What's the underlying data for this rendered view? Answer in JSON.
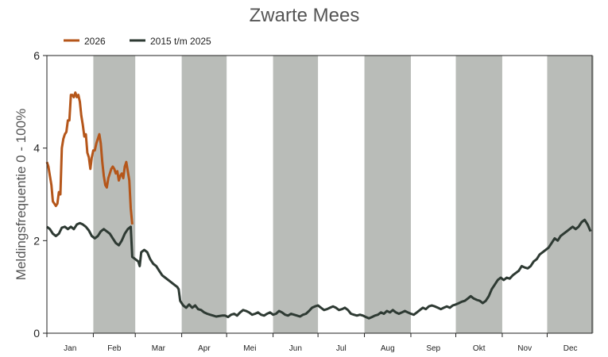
{
  "chart_data": {
    "type": "line",
    "title": "Zwarte Mees",
    "xlabel": "",
    "ylabel": "Meldingsfrequentie 0 - 100%",
    "ylim": [
      0,
      6
    ],
    "yticks": [
      "0",
      "2",
      "4",
      "6"
    ],
    "months": [
      "Jan",
      "Feb",
      "Mar",
      "Apr",
      "Mei",
      "Jun",
      "Jul",
      "Aug",
      "Sep",
      "Okt",
      "Nov",
      "Dec"
    ],
    "month_shading": "alternate months shaded grey (Feb, Apr, Jun, Aug, Okt, Dec)",
    "legend_position": "top-left",
    "x_unit": "day of year",
    "series": [
      {
        "name": "2026",
        "color": "#b5561a",
        "points": [
          [
            1,
            3.7
          ],
          [
            2,
            3.6
          ],
          [
            3,
            3.4
          ],
          [
            4,
            3.2
          ],
          [
            5,
            2.85
          ],
          [
            6,
            2.8
          ],
          [
            7,
            2.75
          ],
          [
            8,
            2.8
          ],
          [
            9,
            3.05
          ],
          [
            10,
            3.0
          ],
          [
            11,
            4.0
          ],
          [
            12,
            4.2
          ],
          [
            13,
            4.3
          ],
          [
            14,
            4.35
          ],
          [
            15,
            4.6
          ],
          [
            16,
            4.6
          ],
          [
            17,
            5.15
          ],
          [
            18,
            5.15
          ],
          [
            19,
            5.1
          ],
          [
            20,
            5.2
          ],
          [
            21,
            5.1
          ],
          [
            22,
            5.15
          ],
          [
            23,
            5.0
          ],
          [
            24,
            4.7
          ],
          [
            25,
            4.5
          ],
          [
            26,
            4.25
          ],
          [
            27,
            4.3
          ],
          [
            28,
            3.9
          ],
          [
            29,
            3.8
          ],
          [
            30,
            3.55
          ],
          [
            31,
            3.8
          ],
          [
            32,
            3.95
          ],
          [
            33,
            3.95
          ],
          [
            34,
            4.1
          ],
          [
            35,
            4.2
          ],
          [
            36,
            4.3
          ],
          [
            37,
            4.1
          ],
          [
            38,
            3.7
          ],
          [
            39,
            3.4
          ],
          [
            40,
            3.2
          ],
          [
            41,
            3.15
          ],
          [
            42,
            3.35
          ],
          [
            43,
            3.45
          ],
          [
            44,
            3.55
          ],
          [
            45,
            3.6
          ],
          [
            46,
            3.55
          ],
          [
            47,
            3.45
          ],
          [
            48,
            3.5
          ],
          [
            49,
            3.3
          ],
          [
            50,
            3.4
          ],
          [
            51,
            3.45
          ],
          [
            52,
            3.35
          ],
          [
            53,
            3.6
          ],
          [
            54,
            3.7
          ],
          [
            55,
            3.5
          ],
          [
            56,
            3.3
          ],
          [
            57,
            2.7
          ],
          [
            58,
            2.35
          ]
        ]
      },
      {
        "name": "2015 t/m 2025",
        "color": "#2e3a33",
        "points": [
          [
            1,
            2.3
          ],
          [
            3,
            2.25
          ],
          [
            5,
            2.15
          ],
          [
            7,
            2.1
          ],
          [
            9,
            2.15
          ],
          [
            11,
            2.28
          ],
          [
            13,
            2.3
          ],
          [
            15,
            2.25
          ],
          [
            17,
            2.3
          ],
          [
            19,
            2.25
          ],
          [
            21,
            2.35
          ],
          [
            23,
            2.38
          ],
          [
            25,
            2.35
          ],
          [
            27,
            2.3
          ],
          [
            29,
            2.22
          ],
          [
            31,
            2.1
          ],
          [
            33,
            2.05
          ],
          [
            35,
            2.1
          ],
          [
            37,
            2.2
          ],
          [
            39,
            2.25
          ],
          [
            41,
            2.2
          ],
          [
            43,
            2.15
          ],
          [
            45,
            2.05
          ],
          [
            47,
            1.95
          ],
          [
            49,
            1.9
          ],
          [
            51,
            2.0
          ],
          [
            53,
            2.15
          ],
          [
            55,
            2.25
          ],
          [
            57,
            2.3
          ],
          [
            58,
            1.65
          ],
          [
            60,
            1.6
          ],
          [
            62,
            1.55
          ],
          [
            63,
            1.45
          ],
          [
            64,
            1.75
          ],
          [
            66,
            1.8
          ],
          [
            68,
            1.75
          ],
          [
            70,
            1.6
          ],
          [
            72,
            1.5
          ],
          [
            74,
            1.45
          ],
          [
            76,
            1.35
          ],
          [
            78,
            1.25
          ],
          [
            80,
            1.2
          ],
          [
            82,
            1.15
          ],
          [
            84,
            1.1
          ],
          [
            86,
            1.05
          ],
          [
            88,
            1.0
          ],
          [
            89,
            0.95
          ],
          [
            90,
            0.7
          ],
          [
            92,
            0.6
          ],
          [
            94,
            0.55
          ],
          [
            96,
            0.62
          ],
          [
            98,
            0.55
          ],
          [
            100,
            0.6
          ],
          [
            102,
            0.52
          ],
          [
            104,
            0.5
          ],
          [
            106,
            0.45
          ],
          [
            108,
            0.42
          ],
          [
            110,
            0.4
          ],
          [
            112,
            0.38
          ],
          [
            114,
            0.36
          ],
          [
            116,
            0.37
          ],
          [
            118,
            0.38
          ],
          [
            120,
            0.38
          ],
          [
            122,
            0.35
          ],
          [
            124,
            0.4
          ],
          [
            126,
            0.42
          ],
          [
            128,
            0.38
          ],
          [
            130,
            0.45
          ],
          [
            132,
            0.5
          ],
          [
            134,
            0.48
          ],
          [
            136,
            0.45
          ],
          [
            138,
            0.4
          ],
          [
            140,
            0.42
          ],
          [
            142,
            0.45
          ],
          [
            144,
            0.4
          ],
          [
            146,
            0.38
          ],
          [
            148,
            0.42
          ],
          [
            150,
            0.45
          ],
          [
            152,
            0.4
          ],
          [
            154,
            0.42
          ],
          [
            156,
            0.48
          ],
          [
            158,
            0.45
          ],
          [
            160,
            0.4
          ],
          [
            162,
            0.38
          ],
          [
            164,
            0.42
          ],
          [
            166,
            0.4
          ],
          [
            168,
            0.38
          ],
          [
            170,
            0.36
          ],
          [
            172,
            0.4
          ],
          [
            174,
            0.42
          ],
          [
            176,
            0.48
          ],
          [
            178,
            0.55
          ],
          [
            180,
            0.58
          ],
          [
            182,
            0.6
          ],
          [
            184,
            0.55
          ],
          [
            186,
            0.5
          ],
          [
            188,
            0.52
          ],
          [
            190,
            0.55
          ],
          [
            192,
            0.58
          ],
          [
            194,
            0.55
          ],
          [
            196,
            0.5
          ],
          [
            198,
            0.52
          ],
          [
            200,
            0.55
          ],
          [
            202,
            0.5
          ],
          [
            204,
            0.42
          ],
          [
            206,
            0.4
          ],
          [
            208,
            0.38
          ],
          [
            210,
            0.4
          ],
          [
            212,
            0.38
          ],
          [
            214,
            0.35
          ],
          [
            216,
            0.32
          ],
          [
            218,
            0.35
          ],
          [
            220,
            0.38
          ],
          [
            222,
            0.4
          ],
          [
            224,
            0.45
          ],
          [
            226,
            0.42
          ],
          [
            228,
            0.48
          ],
          [
            230,
            0.45
          ],
          [
            232,
            0.5
          ],
          [
            234,
            0.45
          ],
          [
            236,
            0.42
          ],
          [
            238,
            0.45
          ],
          [
            240,
            0.48
          ],
          [
            242,
            0.45
          ],
          [
            244,
            0.42
          ],
          [
            246,
            0.4
          ],
          [
            248,
            0.45
          ],
          [
            250,
            0.5
          ],
          [
            252,
            0.55
          ],
          [
            254,
            0.52
          ],
          [
            256,
            0.58
          ],
          [
            258,
            0.6
          ],
          [
            260,
            0.58
          ],
          [
            262,
            0.55
          ],
          [
            264,
            0.52
          ],
          [
            266,
            0.55
          ],
          [
            268,
            0.58
          ],
          [
            270,
            0.55
          ],
          [
            272,
            0.6
          ],
          [
            274,
            0.62
          ],
          [
            276,
            0.65
          ],
          [
            278,
            0.68
          ],
          [
            280,
            0.7
          ],
          [
            282,
            0.75
          ],
          [
            284,
            0.8
          ],
          [
            286,
            0.75
          ],
          [
            288,
            0.72
          ],
          [
            290,
            0.7
          ],
          [
            292,
            0.65
          ],
          [
            294,
            0.7
          ],
          [
            296,
            0.8
          ],
          [
            298,
            0.95
          ],
          [
            300,
            1.05
          ],
          [
            302,
            1.15
          ],
          [
            304,
            1.2
          ],
          [
            306,
            1.15
          ],
          [
            308,
            1.2
          ],
          [
            310,
            1.18
          ],
          [
            312,
            1.25
          ],
          [
            314,
            1.3
          ],
          [
            316,
            1.35
          ],
          [
            318,
            1.45
          ],
          [
            320,
            1.42
          ],
          [
            322,
            1.4
          ],
          [
            324,
            1.45
          ],
          [
            326,
            1.55
          ],
          [
            328,
            1.6
          ],
          [
            330,
            1.7
          ],
          [
            332,
            1.75
          ],
          [
            334,
            1.8
          ],
          [
            336,
            1.85
          ],
          [
            338,
            1.95
          ],
          [
            340,
            2.05
          ],
          [
            342,
            2.0
          ],
          [
            344,
            2.1
          ],
          [
            346,
            2.15
          ],
          [
            348,
            2.2
          ],
          [
            350,
            2.25
          ],
          [
            352,
            2.3
          ],
          [
            354,
            2.25
          ],
          [
            356,
            2.3
          ],
          [
            358,
            2.4
          ],
          [
            360,
            2.45
          ],
          [
            362,
            2.35
          ],
          [
            364,
            2.2
          ]
        ]
      }
    ]
  }
}
